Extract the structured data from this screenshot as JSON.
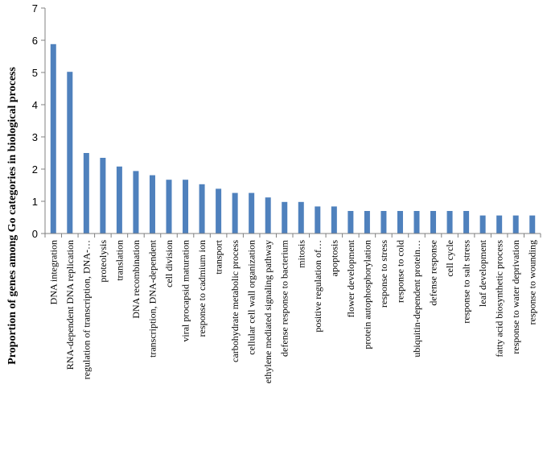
{
  "chart_data": {
    "type": "bar",
    "title": "",
    "xlabel": "",
    "ylabel": "Proportion of genes among Go categories in biological process",
    "ylim": [
      0,
      7
    ],
    "yticks": [
      0,
      1,
      2,
      3,
      4,
      5,
      6,
      7
    ],
    "grid": false,
    "bar_color": "#4F81BD",
    "categories": [
      "DNA integration",
      "RNA-dependent DNA replication",
      "regulation of transcription, DNA-…",
      "proteolysis",
      "translation",
      "DNA recombination",
      "transcription, DNA-dependent",
      "cell division",
      "viral procapsid maturation",
      "response to cadmium ion",
      "transport",
      "carbohydrate metabolic process",
      "cellular cell wall organization",
      "ethylene mediated signaling pathway",
      "defense response to bacterium",
      "mitosis",
      "positive regulation of…",
      "apoptosis",
      "flower development",
      "protein autophosphorylation",
      "response to stress",
      "response to cold",
      "ubiquitin-dependent protein…",
      "defense response",
      "cell cycle",
      "response to salt stress",
      "leaf development",
      "fatty acid biosynthetic process",
      "response to water deprivation",
      "response to wounding"
    ],
    "values": [
      5.88,
      5.02,
      2.5,
      2.35,
      2.08,
      1.94,
      1.81,
      1.67,
      1.67,
      1.53,
      1.39,
      1.26,
      1.26,
      1.12,
      0.98,
      0.98,
      0.84,
      0.84,
      0.7,
      0.7,
      0.7,
      0.7,
      0.7,
      0.7,
      0.7,
      0.7,
      0.56,
      0.56,
      0.56,
      0.56
    ]
  }
}
